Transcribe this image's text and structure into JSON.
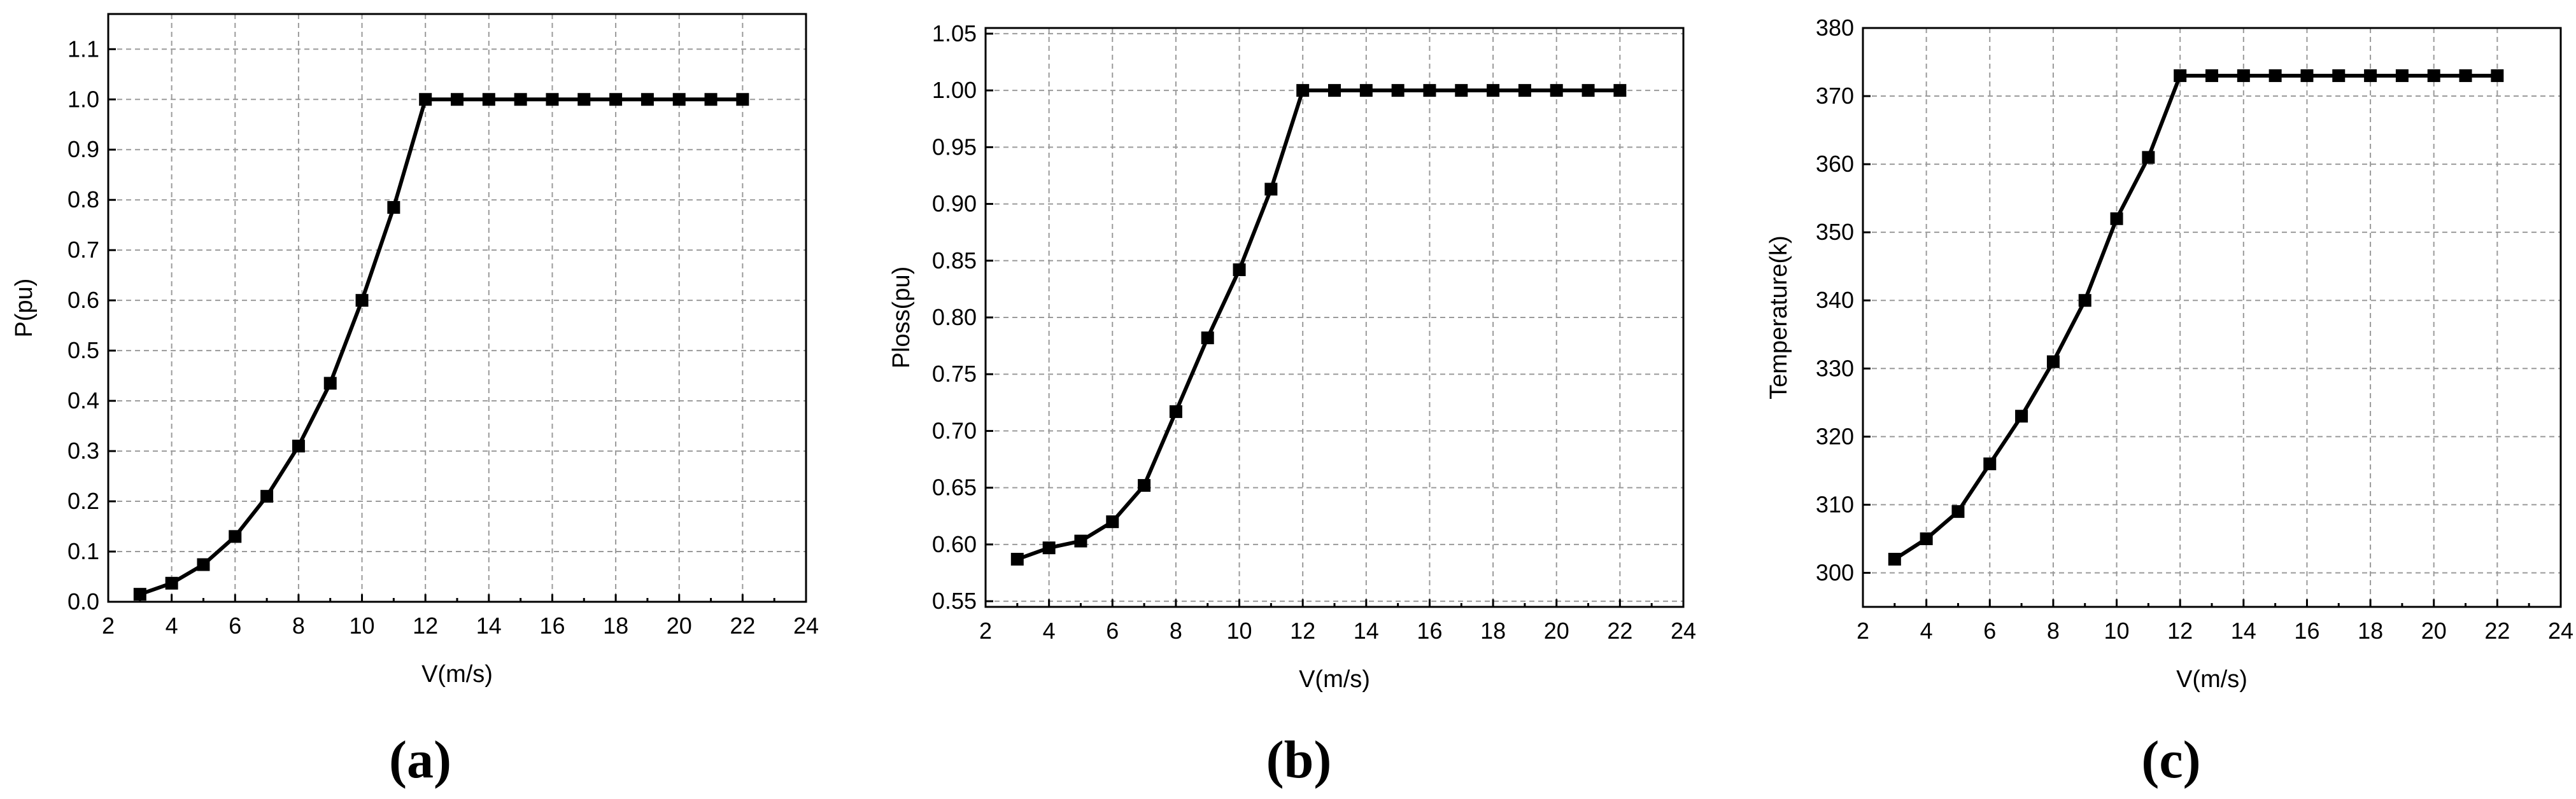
{
  "chart_data": [
    {
      "type": "line",
      "panel_label": "(a)",
      "xlabel": "V(m/s)",
      "ylabel": "P(pu)",
      "xlim": [
        2,
        24
      ],
      "ylim": [
        0,
        1.17
      ],
      "xticks": [
        2,
        4,
        6,
        8,
        10,
        12,
        14,
        16,
        18,
        20,
        22,
        24
      ],
      "yticks": [
        0.0,
        0.1,
        0.2,
        0.3,
        0.4,
        0.5,
        0.6,
        0.7,
        0.8,
        0.9,
        1.0,
        1.1
      ],
      "ytick_labels": [
        "0.0",
        "0.1",
        "0.2",
        "0.3",
        "0.4",
        "0.5",
        "0.6",
        "0.7",
        "0.8",
        "0.9",
        "1.0",
        "1.1"
      ],
      "grid": true,
      "marker": "square",
      "x": [
        3,
        4,
        5,
        6,
        7,
        8,
        9,
        10,
        11,
        12,
        13,
        14,
        15,
        16,
        17,
        18,
        19,
        20,
        21,
        22
      ],
      "y": [
        0.015,
        0.037,
        0.074,
        0.13,
        0.21,
        0.31,
        0.435,
        0.6,
        0.785,
        1.0,
        1.0,
        1.0,
        1.0,
        1.0,
        1.0,
        1.0,
        1.0,
        1.0,
        1.0,
        1.0
      ]
    },
    {
      "type": "line",
      "panel_label": "(b)",
      "xlabel": "V(m/s)",
      "ylabel": "Ploss(pu)",
      "xlim": [
        2,
        24
      ],
      "ylim": [
        0.545,
        1.055
      ],
      "xticks": [
        2,
        4,
        6,
        8,
        10,
        12,
        14,
        16,
        18,
        20,
        22,
        24
      ],
      "yticks": [
        0.55,
        0.6,
        0.65,
        0.7,
        0.75,
        0.8,
        0.85,
        0.9,
        0.95,
        1.0,
        1.05
      ],
      "ytick_labels": [
        "0.55",
        "0.60",
        "0.65",
        "0.70",
        "0.75",
        "0.80",
        "0.85",
        "0.90",
        "0.95",
        "1.00",
        "1.05"
      ],
      "grid": true,
      "marker": "square",
      "x": [
        3,
        4,
        5,
        6,
        7,
        8,
        9,
        10,
        11,
        12,
        13,
        14,
        15,
        16,
        17,
        18,
        19,
        20,
        21,
        22
      ],
      "y": [
        0.587,
        0.597,
        0.603,
        0.62,
        0.652,
        0.717,
        0.782,
        0.842,
        0.913,
        1.0,
        1.0,
        1.0,
        1.0,
        1.0,
        1.0,
        1.0,
        1.0,
        1.0,
        1.0,
        1.0
      ]
    },
    {
      "type": "line",
      "panel_label": "(c)",
      "xlabel": "V(m/s)",
      "ylabel": "Temperature(k)",
      "xlim": [
        2,
        24
      ],
      "ylim": [
        295,
        380
      ],
      "xticks": [
        2,
        4,
        6,
        8,
        10,
        12,
        14,
        16,
        18,
        20,
        22,
        24
      ],
      "yticks": [
        300,
        310,
        320,
        330,
        340,
        350,
        360,
        370,
        380
      ],
      "ytick_labels": [
        "300",
        "310",
        "320",
        "330",
        "340",
        "350",
        "360",
        "370",
        "380"
      ],
      "grid": true,
      "marker": "square",
      "x": [
        3,
        4,
        5,
        6,
        7,
        8,
        9,
        10,
        11,
        12,
        13,
        14,
        15,
        16,
        17,
        18,
        19,
        20,
        21,
        22
      ],
      "y": [
        302,
        305,
        309,
        316,
        323,
        331,
        340,
        352,
        361,
        373,
        373,
        373,
        373,
        373,
        373,
        373,
        373,
        373,
        373,
        373
      ]
    }
  ]
}
